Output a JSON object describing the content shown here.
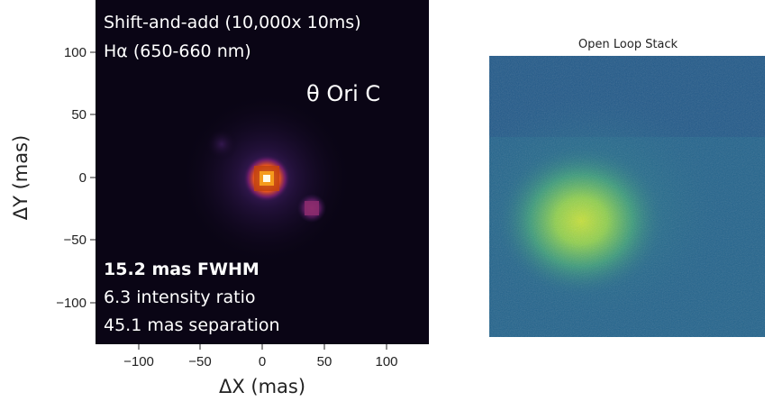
{
  "left_panel": {
    "annotation_lines": [
      "Shift-and-add (10,000x 10ms)",
      "Hα (650-660 nm)"
    ],
    "target_label": "θ Ori C",
    "stats": {
      "fwhm": "15.2 mas FWHM",
      "intensity_ratio": "6.3 intensity ratio",
      "separation": "45.1 mas separation"
    },
    "axes": {
      "xlabel": "ΔX (mas)",
      "ylabel": "ΔY (mas)",
      "xticks": [
        "−100",
        "−50",
        "0",
        "50",
        "100"
      ],
      "yticks": [
        "100",
        "50",
        "0",
        "−50",
        "−100"
      ]
    },
    "colors": {
      "background": "#0a0515",
      "text": "#ffffff"
    }
  },
  "right_panel": {
    "title": "Open Loop Stack",
    "colors": {
      "background": "#22638c",
      "peak": "#b4d83c"
    }
  }
}
